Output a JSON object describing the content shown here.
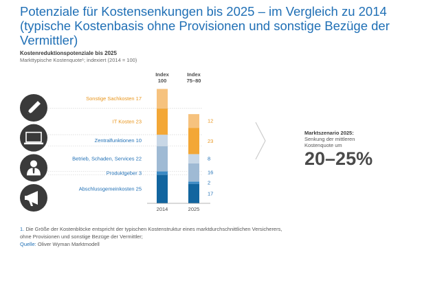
{
  "title": "Potenziale für Kostensenkungen bis 2025 – im Vergleich zu 2014 (typische Kostenbasis ohne Provisionen und sonstige Bezüge der Vermittler)",
  "subtitle": "Kostenreduktionspotenziale bis 2025",
  "description": "Markttypische Kostenquote¹; indexiert (2014 = 100)",
  "icons": [
    "pen-icon",
    "laptop-icon",
    "person-icon",
    "megaphone-icon"
  ],
  "colors": {
    "title": "#1f6fb5",
    "orange_light": "#f6c27e",
    "orange": "#f3a736",
    "blue_pale": "#c8d7e6",
    "blue_light": "#9fbad4",
    "blue_mid": "#3b8ac4",
    "blue_dark": "#12659f",
    "label_orange": "#e8951c",
    "label_blue": "#1f6fb5"
  },
  "chart_data": {
    "type": "bar",
    "stacked": true,
    "categories": [
      "2014",
      "2025"
    ],
    "column_headers": [
      "Index\n100",
      "Index\n75–80"
    ],
    "series": [
      {
        "name": "Abschlussgemeinkosten",
        "values": [
          25,
          17
        ],
        "color": "#12659f"
      },
      {
        "name": "Produktgeber",
        "values": [
          3,
          2
        ],
        "color": "#3b8ac4"
      },
      {
        "name": "Betrieb, Schaden, Services",
        "values": [
          22,
          16
        ],
        "color": "#9fbad4"
      },
      {
        "name": "Zentralfunktionen",
        "values": [
          10,
          8
        ],
        "color": "#c8d7e6"
      },
      {
        "name": "IT Kosten",
        "values": [
          23,
          23
        ],
        "color": "#f3a736"
      },
      {
        "name": "Sonstige Sachkosten",
        "values": [
          17,
          12
        ],
        "color": "#f6c27e"
      }
    ],
    "label_colors": [
      "#1f6fb5",
      "#1f6fb5",
      "#1f6fb5",
      "#1f6fb5",
      "#e8951c",
      "#e8951c"
    ],
    "annotation": {
      "title": "Marktszenario 2025:",
      "text_line1": "Senkung der mittleren",
      "text_line2": "Kostenquote um",
      "value": "20–25%"
    }
  },
  "footnote": {
    "number": "1.",
    "line1": " Die Größe der Kostenblöcke entspricht der typischen Kostenstruktur eines marktdurchschnittlichen Versicherers,",
    "line2": "ohne Provisionen und sonstige Bezüge der Vermittler;",
    "source_label": "Quelle:",
    "source": " Oliver Wyman Marktmodell"
  }
}
